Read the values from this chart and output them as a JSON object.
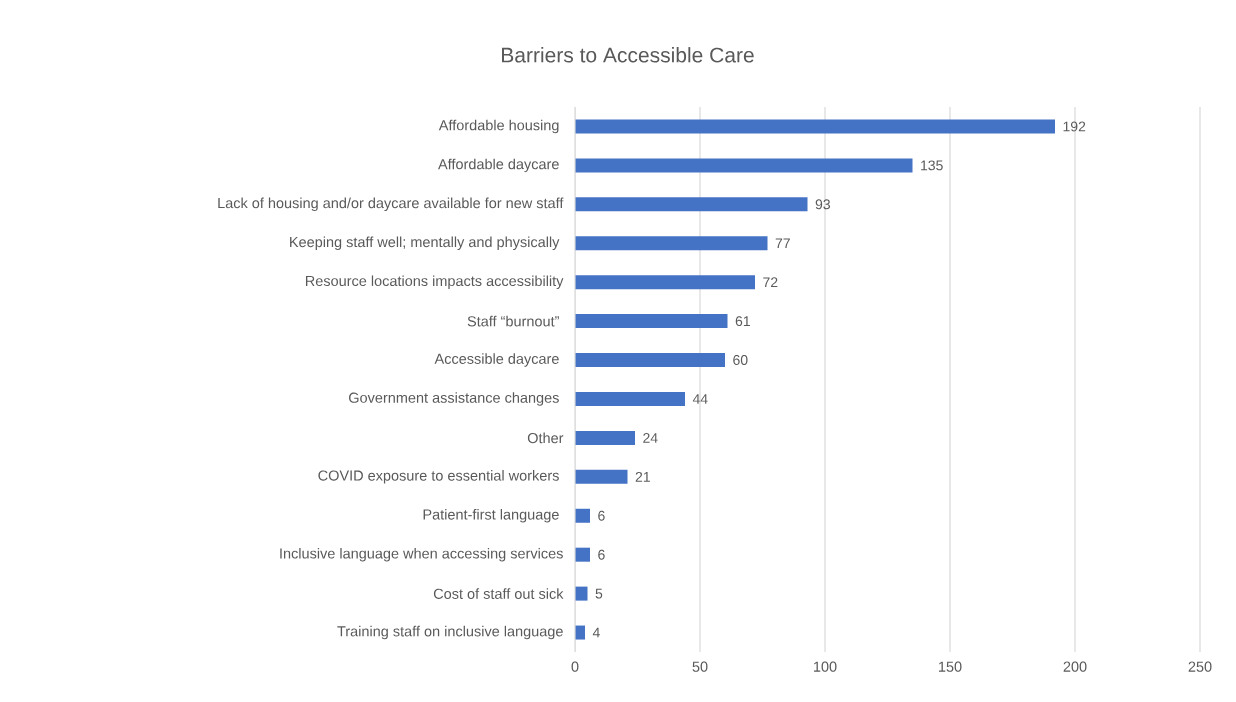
{
  "chart_data": {
    "type": "bar",
    "orientation": "horizontal",
    "title": "Barriers to Accessible Care",
    "categories": [
      "Affordable housing ",
      "Affordable daycare ",
      "Lack of housing and/or daycare available for new staff",
      "Keeping staff well; mentally and physically ",
      "Resource locations impacts accessibility",
      "Staff “burnout” ",
      "Accessible daycare ",
      "Government assistance changes ",
      "Other",
      "COVID exposure to essential workers ",
      "Patient-first language ",
      "Inclusive language when accessing services",
      "Cost of staff out sick",
      "Training staff on inclusive language"
    ],
    "values": [
      192,
      135,
      93,
      77,
      72,
      61,
      60,
      44,
      24,
      21,
      6,
      6,
      5,
      4
    ],
    "color": "#4472c4",
    "xlim": [
      0,
      250
    ],
    "xticks": [
      0,
      50,
      100,
      150,
      200,
      250
    ],
    "grid": "x",
    "data_labels": true
  }
}
